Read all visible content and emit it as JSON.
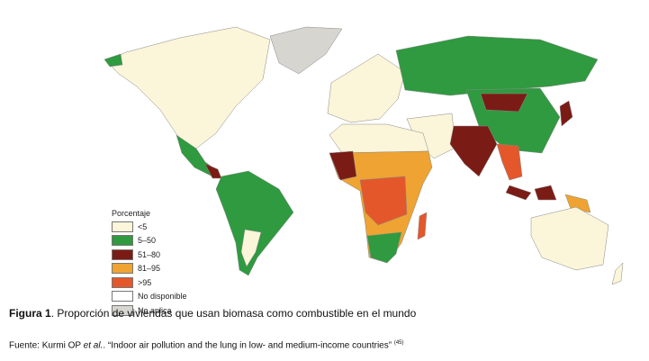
{
  "legend": {
    "title": "Porcentaje",
    "items": [
      {
        "label": "<5",
        "color": "#fbf5d9"
      },
      {
        "label": "5–50",
        "color": "#2f9a3f"
      },
      {
        "label": "51–80",
        "color": "#7b1b15"
      },
      {
        "label": "81–95",
        "color": "#eea332"
      },
      {
        "label": ">95",
        "color": "#e4572b"
      },
      {
        "label": "No disponible",
        "color": "#ffffff"
      },
      {
        "label": "No aplica",
        "color": "#d6d5d0"
      }
    ]
  },
  "caption": {
    "figure_label": "Figura 1",
    "title": ". Proporción de viviendas que usan biomasa como combustible en el mundo",
    "source_prefix": "Fuente: Kurmi OP ",
    "source_italic": "et al.",
    "source_text": ". “Indoor air pollution and the lung in low- and medium-income countries”",
    "source_ref": "(45)"
  }
}
